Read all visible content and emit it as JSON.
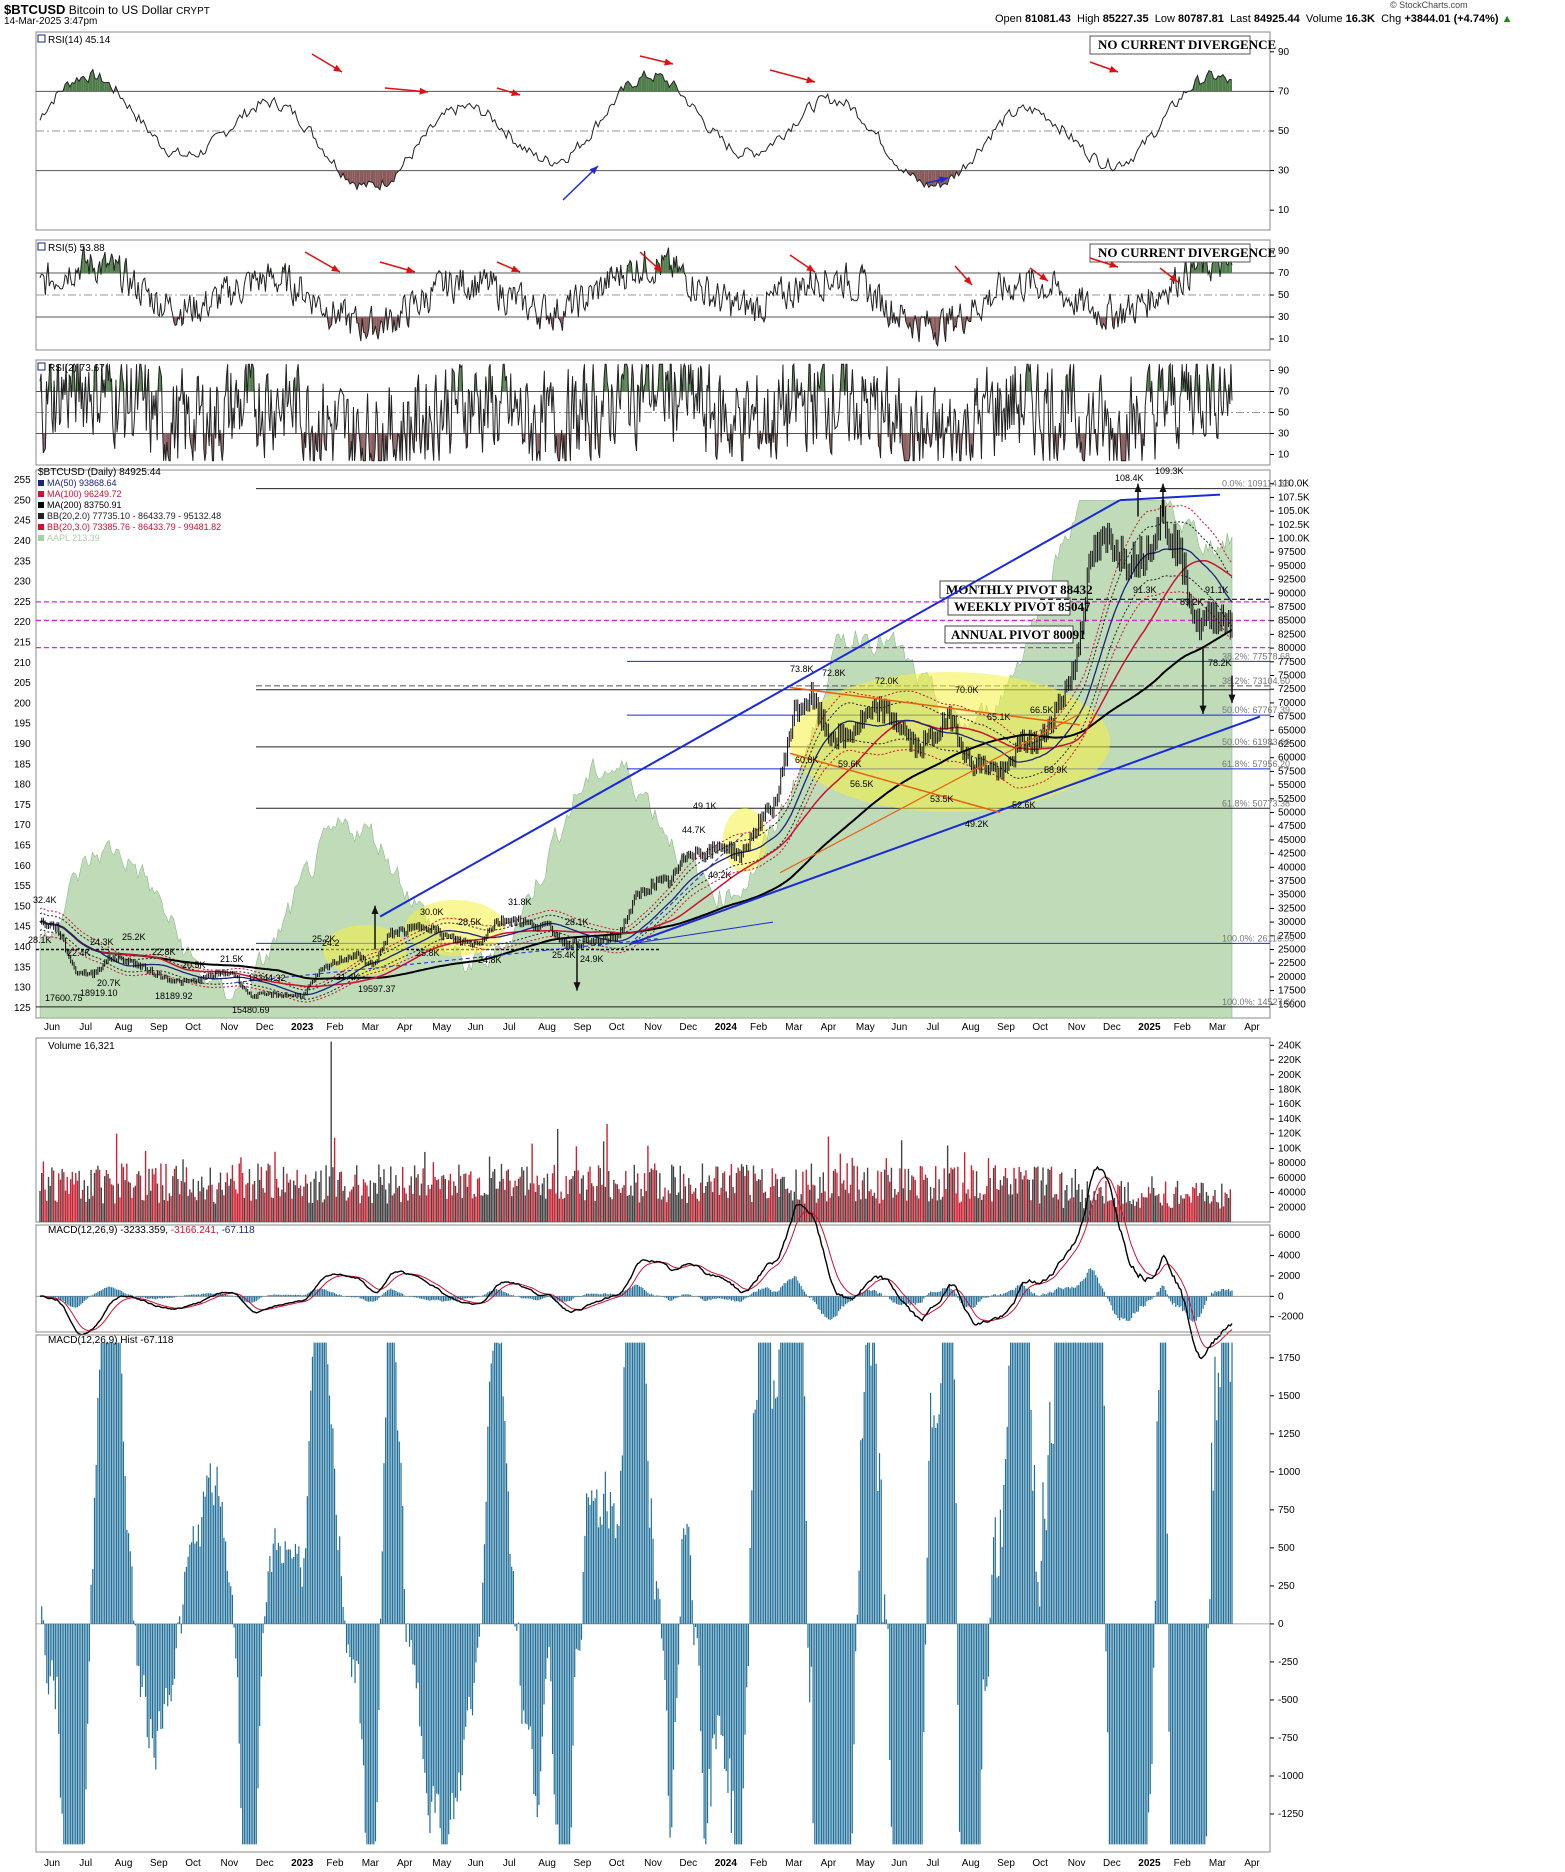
{
  "header": {
    "symbol": "$BTCUSD",
    "name": "Bitcoin to US Dollar",
    "exchange": "CRYPT",
    "date": "14-Mar-2025 3:47pm",
    "watermark": "© StockCharts.com",
    "open_label": "Open",
    "open": "81081.43",
    "high_label": "High",
    "high": "85227.35",
    "low_label": "Low",
    "low": "80787.81",
    "last_label": "Last",
    "last": "84925.44",
    "volume_label": "Volume",
    "volume": "16.3K",
    "chg_label": "Chg",
    "chg": "+3844.01 (+4.74%)",
    "chg_icon": "up-triangle-icon"
  },
  "colors": {
    "rsi_green": "#4f7d4a",
    "rsi_red": "#8a5a5a",
    "ma50": "#1a237e",
    "ma100": "#cc1133",
    "ma200": "#000000",
    "bb_black": "#222222",
    "bb_red": "#cc1133",
    "aapl_area": "#a9cfa0",
    "pivot_line": "#e020e0",
    "trend_blue": "#1a2ad8",
    "channel_orange": "#e86010",
    "ellipse_yellow": "#f5f040",
    "vol_up": "#444444",
    "vol_down": "#cc2233",
    "macd_hist": "#1f6f9a",
    "arrow_red": "#e01010",
    "arrow_blue": "#1a2ad8"
  },
  "chart_data": [
    {
      "type": "line",
      "title": "RSI(14) 45.14",
      "ylim": [
        0,
        100
      ],
      "yticks": [
        10,
        30,
        50,
        70,
        90
      ],
      "reference_lines": [
        30,
        50,
        70
      ],
      "annotation": "NO CURRENT DIVERGENCE",
      "last": 45.14
    },
    {
      "type": "line",
      "title": "RSI(5) 53.88",
      "ylim": [
        0,
        100
      ],
      "yticks": [
        10,
        30,
        50,
        70,
        90
      ],
      "reference_lines": [
        30,
        50,
        70
      ],
      "annotation": "NO CURRENT DIVERGENCE",
      "last": 53.88
    },
    {
      "type": "line",
      "title": "RSI(2) 73.67",
      "ylim": [
        0,
        100
      ],
      "yticks": [
        10,
        30,
        50,
        70,
        90
      ],
      "reference_lines": [
        30,
        50,
        70
      ],
      "last": 73.67
    },
    {
      "type": "line",
      "title": "$BTCUSD (Daily) 84925.44",
      "legend": [
        {
          "name": "MA(50) 93868.64",
          "color": "#1a237e"
        },
        {
          "name": "MA(100) 96249.72",
          "color": "#cc1133"
        },
        {
          "name": "MA(200) 83750.91",
          "color": "#000000"
        },
        {
          "name": "BB(20,2.0) 77735.10 - 86433.79 - 95132.48",
          "color": "#222222"
        },
        {
          "name": "BB(20,3.0) 73385.76 - 86433.79 - 99481.82",
          "color": "#cc1133"
        },
        {
          "name": "AAPL 213.39",
          "color": "#a9cfa0"
        }
      ],
      "x": [
        "Jun",
        "Jul",
        "Aug",
        "Sep",
        "Oct",
        "Nov",
        "Dec",
        "2023",
        "Feb",
        "Mar",
        "Apr",
        "May",
        "Jun",
        "Jul",
        "Aug",
        "Sep",
        "Oct",
        "Nov",
        "Dec",
        "2024",
        "Feb",
        "Mar",
        "Apr",
        "May",
        "Jun",
        "Jul",
        "Aug",
        "Sep",
        "Oct",
        "Nov",
        "Dec",
        "2025",
        "Feb",
        "Mar",
        "Apr"
      ],
      "ylim": [
        12500,
        112500
      ],
      "yticks_right": [
        "15000",
        "17500",
        "20000",
        "22500",
        "25000",
        "27500",
        "30000",
        "32500",
        "35000",
        "37500",
        "40000",
        "42500",
        "45000",
        "47500",
        "50000",
        "52500",
        "55000",
        "57500",
        "60000",
        "62500",
        "65000",
        "67500",
        "70000",
        "72500",
        "75000",
        "77500",
        "80000",
        "82500",
        "85000",
        "87500",
        "90000",
        "92500",
        "95000",
        "97500",
        "100.0K",
        "102.5K",
        "105.0K",
        "107.5K",
        "110.0K"
      ],
      "aapl_ticks_left": [
        "125",
        "130",
        "135",
        "140",
        "145",
        "150",
        "155",
        "160",
        "165",
        "170",
        "175",
        "180",
        "185",
        "190",
        "195",
        "200",
        "205",
        "210",
        "215",
        "220",
        "225",
        "230",
        "235",
        "240",
        "245",
        "250",
        "255"
      ],
      "aapl_ylim": [
        122.5,
        257.5
      ],
      "btc_close_path": [
        [
          "Jun",
          30000
        ],
        [
          "Jun",
          29000
        ],
        [
          "Jun",
          21000
        ],
        [
          "Jul",
          20500
        ],
        [
          "Jul",
          23500
        ],
        [
          "Aug",
          23000
        ],
        [
          "Aug",
          21500
        ],
        [
          "Sep",
          20000
        ],
        [
          "Sep",
          19000
        ],
        [
          "Oct",
          19300
        ],
        [
          "Oct",
          20500
        ],
        [
          "Nov",
          20800
        ],
        [
          "Nov",
          16500
        ],
        [
          "Dec",
          16800
        ],
        [
          "Dec",
          16700
        ],
        [
          "2023",
          16600
        ],
        [
          "2023",
          21000
        ],
        [
          "Feb",
          23000
        ],
        [
          "Feb",
          24000
        ],
        [
          "Mar",
          22000
        ],
        [
          "Mar",
          28000
        ],
        [
          "Apr",
          28500
        ],
        [
          "Apr",
          29500
        ],
        [
          "May",
          27500
        ],
        [
          "May",
          26500
        ],
        [
          "Jun",
          26000
        ],
        [
          "Jun",
          30000
        ],
        [
          "Jul",
          30500
        ],
        [
          "Jul",
          29500
        ],
        [
          "Aug",
          29200
        ],
        [
          "Aug",
          26000
        ],
        [
          "Sep",
          26200
        ],
        [
          "Sep",
          26500
        ],
        [
          "Oct",
          27500
        ],
        [
          "Oct",
          34500
        ],
        [
          "Nov",
          37000
        ],
        [
          "Nov",
          37500
        ],
        [
          "Dec",
          43000
        ],
        [
          "Dec",
          42500
        ],
        [
          "2024",
          44000
        ],
        [
          "2024",
          42000
        ],
        [
          "Feb",
          48000
        ],
        [
          "Feb",
          52000
        ],
        [
          "Mar",
          68000
        ],
        [
          "Mar",
          71000
        ],
        [
          "Apr",
          64000
        ],
        [
          "Apr",
          63500
        ],
        [
          "May",
          67000
        ],
        [
          "May",
          69000
        ],
        [
          "Jun",
          66000
        ],
        [
          "Jun",
          61500
        ],
        [
          "Jul",
          64000
        ],
        [
          "Jul",
          67500
        ],
        [
          "Aug",
          59000
        ],
        [
          "Aug",
          58500
        ],
        [
          "Sep",
          57000
        ],
        [
          "Sep",
          63000
        ],
        [
          "Oct",
          62500
        ],
        [
          "Oct",
          69000
        ],
        [
          "Nov",
          76000
        ],
        [
          "Nov",
          97000
        ],
        [
          "Dec",
          100000
        ],
        [
          "Dec",
          96000
        ],
        [
          "2025",
          97000
        ],
        [
          "2025",
          104000
        ],
        [
          "Feb",
          97500
        ],
        [
          "Feb",
          84000
        ],
        [
          "Mar",
          86000
        ],
        [
          "Mar",
          84925
        ]
      ],
      "labels": [
        {
          "x": "Jun",
          "text": "32.4K"
        },
        {
          "x": "Jun",
          "text": "28.1K"
        },
        {
          "x": "Jul",
          "text": "22.4K"
        },
        {
          "x": "Jul",
          "text": "24.3K"
        },
        {
          "x": "Aug",
          "text": "25.2K"
        },
        {
          "x": "Aug",
          "text": "20.7K"
        },
        {
          "x": "Jun",
          "text": "17600.75"
        },
        {
          "x": "Jul",
          "text": "18919.10"
        },
        {
          "x": "Sep",
          "text": "22.8K"
        },
        {
          "x": "Sep",
          "text": "18189.92"
        },
        {
          "x": "Oct",
          "text": "20.5K"
        },
        {
          "x": "Nov",
          "text": "21.5K"
        },
        {
          "x": "Nov",
          "text": "18344.32"
        },
        {
          "x": "Nov",
          "text": "15480.69"
        },
        {
          "x": "Feb",
          "text": "24.2"
        },
        {
          "x": "Feb",
          "text": "25.2K"
        },
        {
          "x": "Feb",
          "text": "21.4K"
        },
        {
          "x": "Mar",
          "text": "19597.37"
        },
        {
          "x": "Apr",
          "text": "30.0K"
        },
        {
          "x": "May",
          "text": "25.8K"
        },
        {
          "x": "Jun",
          "text": "28.5K"
        },
        {
          "x": "Jun",
          "text": "24.8K"
        },
        {
          "x": "Jul",
          "text": "31.8K"
        },
        {
          "x": "Aug",
          "text": "25.4K"
        },
        {
          "x": "Sep",
          "text": "28.1K"
        },
        {
          "x": "Sep",
          "text": "24.9K"
        },
        {
          "x": "Dec",
          "text": "44.7K"
        },
        {
          "x": "2024",
          "text": "49.1K"
        },
        {
          "x": "2024",
          "text": "40.2K"
        },
        {
          "x": "Mar",
          "text": "73.8K"
        },
        {
          "x": "Apr",
          "text": "72.8K"
        },
        {
          "x": "Mar",
          "text": "60.8K"
        },
        {
          "x": "Apr",
          "text": "59.6K"
        },
        {
          "x": "May",
          "text": "56.5K"
        },
        {
          "x": "Jun",
          "text": "72.0K"
        },
        {
          "x": "Jul",
          "text": "70.0K"
        },
        {
          "x": "Aug",
          "text": "53.5K"
        },
        {
          "x": "Aug",
          "text": "65.1K"
        },
        {
          "x": "Sep",
          "text": "49.2K"
        },
        {
          "x": "Sep",
          "text": "52.6K"
        },
        {
          "x": "Oct",
          "text": "66.5K"
        },
        {
          "x": "Oct",
          "text": "58.9K"
        },
        {
          "x": "Dec",
          "text": "108.4K"
        },
        {
          "x": "2025",
          "text": "109.3K"
        },
        {
          "x": "Dec",
          "text": "91.3K"
        },
        {
          "x": "Feb",
          "text": "89.2K"
        },
        {
          "x": "Feb",
          "text": "91.1K"
        },
        {
          "x": "Mar",
          "text": "78.2K"
        }
      ],
      "fib_labels": [
        "0.0%: 109114.88",
        "38.2%: 77578.68",
        "38.2%: 73104.60",
        "50.0%: 67767.39",
        "50.0%: 61983.66",
        "61.8%: 57956.20",
        "61.8%: 50773.38",
        "100.0%: 26116.99",
        "100.0%: 14527.66"
      ],
      "pivots": [
        {
          "name": "MONTHLY PIVOT 88432",
          "value": 88432
        },
        {
          "name": "WEEKLY PIVOT 85047",
          "value": 85047
        },
        {
          "name": "ANNUAL PIVOT 80091",
          "value": 80091
        }
      ]
    },
    {
      "type": "bar",
      "title": "Volume 16,321",
      "ylim": [
        0,
        250000
      ],
      "yticks": [
        "20000",
        "40000",
        "60000",
        "80000",
        "100K",
        "120K",
        "140K",
        "160K",
        "180K",
        "200K",
        "220K",
        "240K"
      ],
      "last": 16321
    },
    {
      "type": "line",
      "title": "MACD(12,26,9) -3233.359, -3166.241, -67.118",
      "title_parts": [
        "MACD(12,26,9) -3233.359,",
        "-3166.241,",
        "-67.118"
      ],
      "ylim": [
        -3500,
        7000
      ],
      "yticks": [
        "-2000",
        "0",
        "2000",
        "4000",
        "6000"
      ]
    },
    {
      "type": "bar",
      "title": "MACD(12,26,9) Hist -67.118",
      "ylim": [
        -1500,
        1900
      ],
      "yticks": [
        "-1250",
        "-1000",
        "-750",
        "-500",
        "-250",
        "0",
        "250",
        "500",
        "750",
        "1000",
        "1250",
        "1500",
        "1750"
      ]
    }
  ],
  "x_axis_labels": [
    "Jun",
    "Jul",
    "Aug",
    "Sep",
    "Oct",
    "Nov",
    "Dec",
    "2023",
    "Feb",
    "Mar",
    "Apr",
    "May",
    "Jun",
    "Jul",
    "Aug",
    "Sep",
    "Oct",
    "Nov",
    "Dec",
    "2024",
    "Feb",
    "Mar",
    "Apr",
    "May",
    "Jun",
    "Jul",
    "Aug",
    "Sep",
    "Oct",
    "Nov",
    "Dec",
    "2025",
    "Feb",
    "Mar",
    "Apr"
  ]
}
